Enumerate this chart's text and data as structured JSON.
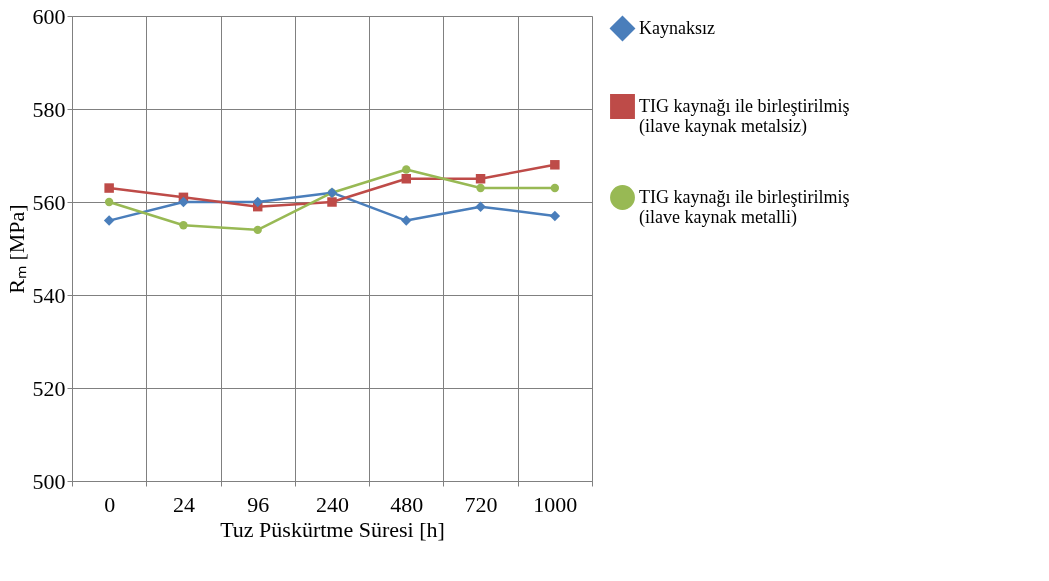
{
  "chart_data": {
    "type": "line",
    "xlabel": "Tuz Püskürtme Süresi [h]",
    "ylabel": "Rₘ [MPa]",
    "categories": [
      "0",
      "24",
      "96",
      "240",
      "480",
      "720",
      "1000"
    ],
    "ylim": [
      500,
      600
    ],
    "yticks": [
      500,
      520,
      540,
      560,
      580,
      600
    ],
    "grid": true,
    "legend": "right",
    "series": [
      {
        "name": "Kaynaksız",
        "color": "#4a7ebb",
        "marker": "diamond",
        "values": [
          556,
          560,
          560,
          562,
          556,
          559,
          557
        ]
      },
      {
        "name": "TIG kaynağı ile birleştirilmiş\n(ilave kaynak metalsiz)",
        "color": "#be4b48",
        "marker": "square",
        "values": [
          563,
          561,
          559,
          560,
          565,
          565,
          568
        ]
      },
      {
        "name": "TIG kaynağı ile birleştirilmiş\n(ilave kaynak metalli)",
        "color": "#98b954",
        "marker": "circle",
        "values": [
          560,
          555,
          554,
          562,
          567,
          563,
          563
        ]
      }
    ]
  }
}
